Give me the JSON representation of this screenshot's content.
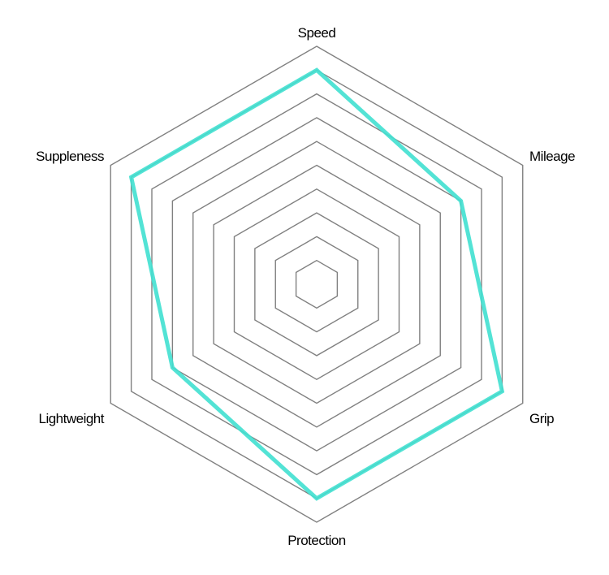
{
  "chart_data": {
    "type": "radar",
    "categories": [
      "Speed",
      "Mileage",
      "Grip",
      "Protection",
      "Lightweight",
      "Suppleness"
    ],
    "series": [
      {
        "values": [
          9,
          7,
          9,
          9,
          7,
          9
        ],
        "color": "#40E0D0"
      }
    ],
    "rlim": [
      0,
      10
    ],
    "grid_levels": 10,
    "grid": true,
    "grid_color": "#808080"
  }
}
